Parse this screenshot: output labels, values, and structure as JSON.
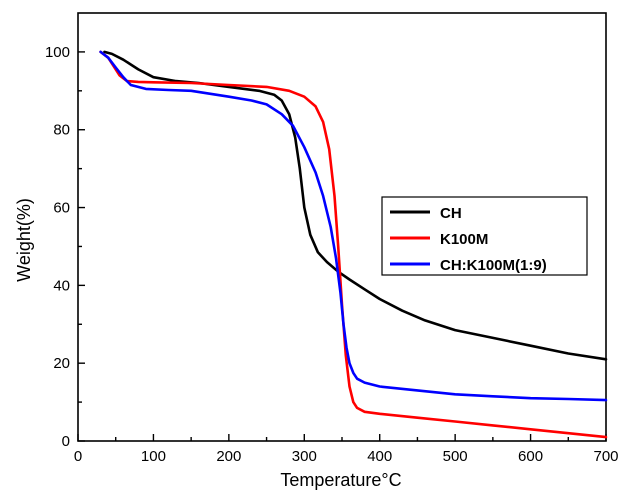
{
  "chart_data": {
    "type": "line",
    "title": "",
    "xlabel": "Temperature°C",
    "ylabel": "Weight(%)",
    "xlim": [
      0,
      700
    ],
    "ylim": [
      0,
      110
    ],
    "xticks": [
      0,
      100,
      200,
      300,
      400,
      500,
      600,
      700
    ],
    "yticks": [
      0,
      20,
      40,
      60,
      80,
      100
    ],
    "grid": false,
    "legend_position": "center-right",
    "series": [
      {
        "name": "CH",
        "color": "#000000",
        "x": [
          35,
          45,
          60,
          80,
          100,
          130,
          160,
          200,
          240,
          260,
          270,
          280,
          288,
          294,
          300,
          308,
          318,
          330,
          345,
          360,
          380,
          400,
          430,
          460,
          500,
          550,
          600,
          650,
          700
        ],
        "y": [
          100,
          99.5,
          98,
          95.5,
          93.5,
          92.5,
          92,
          91,
          90,
          89,
          87.5,
          84,
          78,
          70,
          60,
          53,
          48.5,
          46,
          43.5,
          41.5,
          39,
          36.5,
          33.5,
          31,
          28.5,
          26.5,
          24.5,
          22.5,
          21
        ]
      },
      {
        "name": "K100M",
        "color": "#ff0000",
        "x": [
          30,
          40,
          55,
          65,
          80,
          100,
          150,
          200,
          250,
          280,
          300,
          315,
          325,
          333,
          340,
          345,
          350,
          355,
          360,
          365,
          370,
          380,
          400,
          450,
          500,
          550,
          600,
          650,
          700
        ],
        "y": [
          100,
          98.5,
          94,
          92.5,
          92.3,
          92.2,
          92,
          91.5,
          91,
          90,
          88.5,
          86,
          82,
          75,
          63,
          50,
          35,
          22,
          14,
          10,
          8.5,
          7.5,
          7,
          6,
          5,
          4,
          3,
          2,
          1
        ]
      },
      {
        "name": "CH:K100M(1:9)",
        "color": "#0000ff",
        "x": [
          30,
          40,
          50,
          60,
          70,
          90,
          120,
          150,
          200,
          230,
          250,
          270,
          285,
          300,
          315,
          325,
          335,
          342,
          348,
          352,
          356,
          360,
          365,
          370,
          380,
          400,
          450,
          500,
          550,
          600,
          650,
          700
        ],
        "y": [
          100,
          98.5,
          96,
          93.5,
          91.5,
          90.5,
          90.2,
          90,
          88.5,
          87.5,
          86.5,
          84,
          81,
          75.5,
          69,
          63,
          55,
          47,
          38,
          30,
          24,
          20,
          17.5,
          16,
          15,
          14,
          13,
          12,
          11.5,
          11,
          10.8,
          10.5
        ]
      }
    ]
  }
}
